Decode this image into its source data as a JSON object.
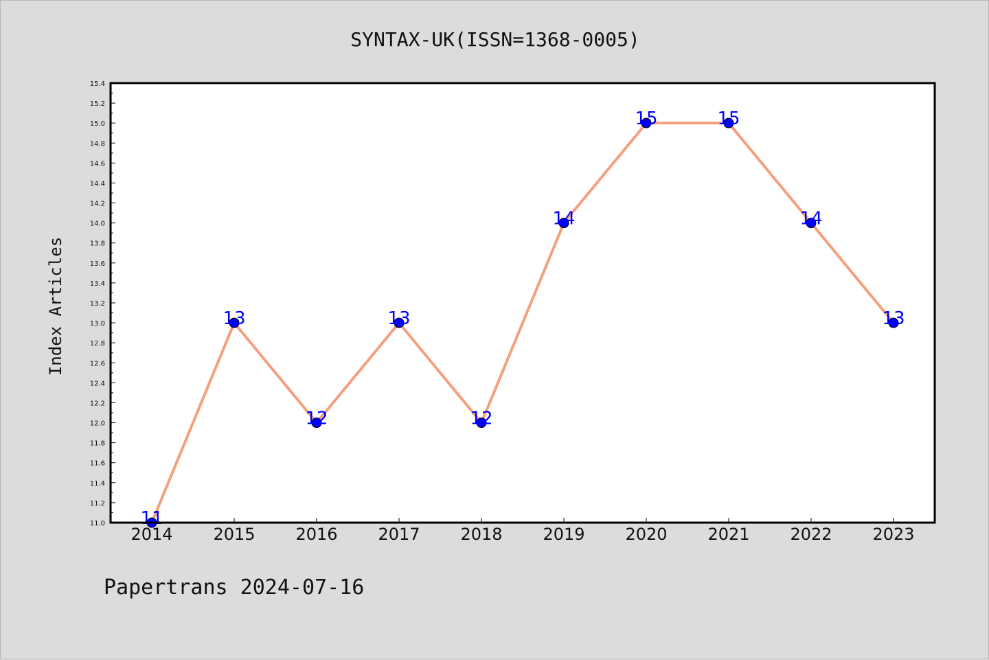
{
  "chart_data": {
    "type": "line",
    "title": "SYNTAX-UK(ISSN=1368-0005)",
    "xlabel": "",
    "ylabel": "Index Articles",
    "categories": [
      "2014",
      "2015",
      "2016",
      "2017",
      "2018",
      "2019",
      "2020",
      "2021",
      "2022",
      "2023"
    ],
    "values": [
      11,
      13,
      12,
      13,
      12,
      14,
      15,
      15,
      14,
      13
    ],
    "data_labels": [
      "11",
      "13",
      "12",
      "13",
      "12",
      "14",
      "15",
      "15",
      "14",
      "13"
    ],
    "ylim": [
      11.0,
      15.4
    ],
    "yticks": [
      "11.0",
      "11.2",
      "11.4",
      "11.6",
      "11.8",
      "12.0",
      "12.2",
      "12.4",
      "12.6",
      "12.8",
      "13.0",
      "13.2",
      "13.4",
      "13.6",
      "13.8",
      "14.0",
      "14.2",
      "14.4",
      "14.6",
      "14.8",
      "15.0",
      "15.2",
      "15.4"
    ],
    "grid": false,
    "line_color": "#f4a07c",
    "marker_color": "#0000ff",
    "label_color": "#0000ff",
    "background": "#dcdcdc",
    "plot_background": "#ffffff"
  },
  "footer": "Papertrans 2024-07-16"
}
